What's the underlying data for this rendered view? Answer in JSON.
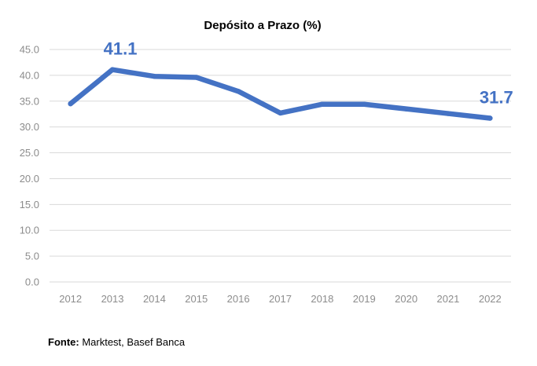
{
  "chart_data": {
    "type": "line",
    "title": "Depósito a Prazo (%)",
    "categories": [
      "2012",
      "2013",
      "2014",
      "2015",
      "2016",
      "2017",
      "2018",
      "2019",
      "2020",
      "2021",
      "2022"
    ],
    "series": [
      {
        "name": "Depósito a Prazo (%)",
        "values": [
          34.5,
          41.1,
          39.8,
          39.6,
          36.9,
          32.7,
          34.4,
          34.4,
          33.5,
          32.6,
          31.7
        ]
      }
    ],
    "yticks": [
      "0.0",
      "5.0",
      "10.0",
      "15.0",
      "20.0",
      "25.0",
      "30.0",
      "35.0",
      "40.0",
      "45.0"
    ],
    "ylim": [
      0,
      45
    ],
    "grid": true,
    "data_labels": [
      {
        "category": "2013",
        "text": "41.1"
      },
      {
        "category": "2022",
        "text": "31.7"
      }
    ],
    "line_color": "#4472c4"
  },
  "source": {
    "label": "Fonte:",
    "text": " Marktest, Basef Banca"
  }
}
